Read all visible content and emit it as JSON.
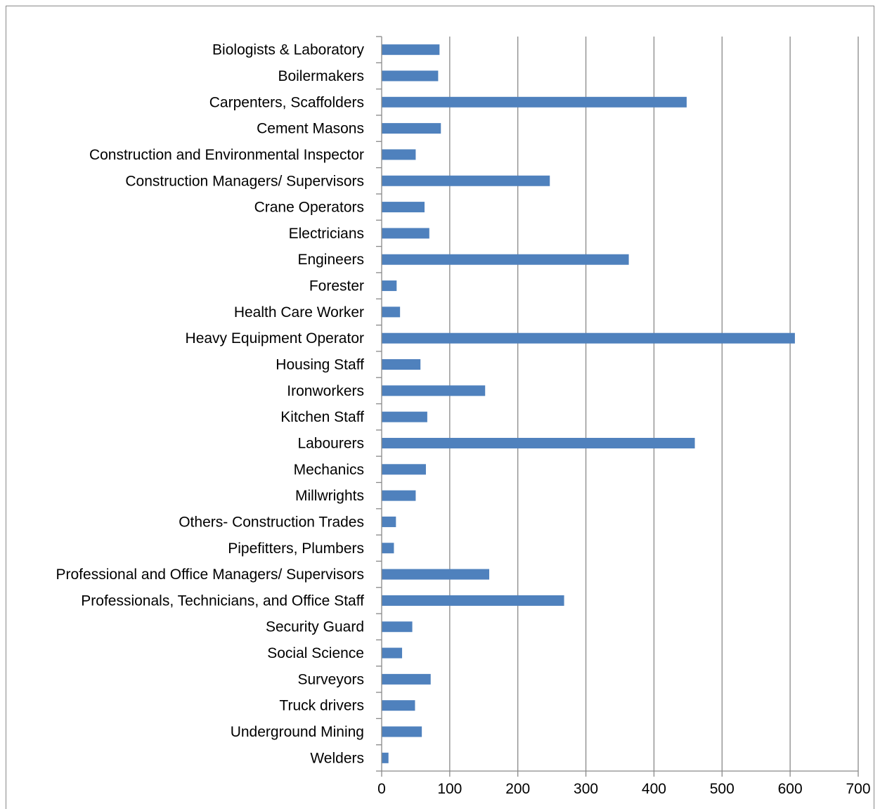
{
  "chart_data": {
    "type": "bar",
    "orientation": "horizontal",
    "title": "",
    "xlabel": "",
    "ylabel": "",
    "xlim": [
      0,
      700
    ],
    "x_ticks": [
      "0",
      "100",
      "200",
      "300",
      "400",
      "500",
      "600",
      "700"
    ],
    "grid": "vertical major gridlines",
    "legend": "none",
    "bar_color": "#4f81bd",
    "categories": [
      "Biologists & Laboratory",
      "Boilermakers",
      "Carpenters, Scaffolders",
      "Cement Masons",
      "Construction and Environmental Inspector",
      "Construction Managers/ Supervisors",
      "Crane Operators",
      "Electricians",
      "Engineers",
      "Forester",
      "Health Care Worker",
      "Heavy Equipment Operator",
      "Housing Staff",
      "Ironworkers",
      "Kitchen Staff",
      "Labourers",
      "Mechanics",
      "Millwrights",
      "Others- Construction Trades",
      "Pipefitters, Plumbers",
      "Professional and Office Managers/ Supervisors",
      "Professionals, Technicians, and Office Staff",
      "Security Guard",
      "Social Science",
      "Surveyors",
      "Truck drivers",
      "Underground Mining",
      "Welders"
    ],
    "values": [
      85,
      83,
      448,
      87,
      50,
      247,
      63,
      70,
      363,
      22,
      27,
      607,
      57,
      152,
      67,
      460,
      65,
      50,
      21,
      18,
      158,
      268,
      45,
      30,
      72,
      49,
      59,
      10
    ]
  }
}
